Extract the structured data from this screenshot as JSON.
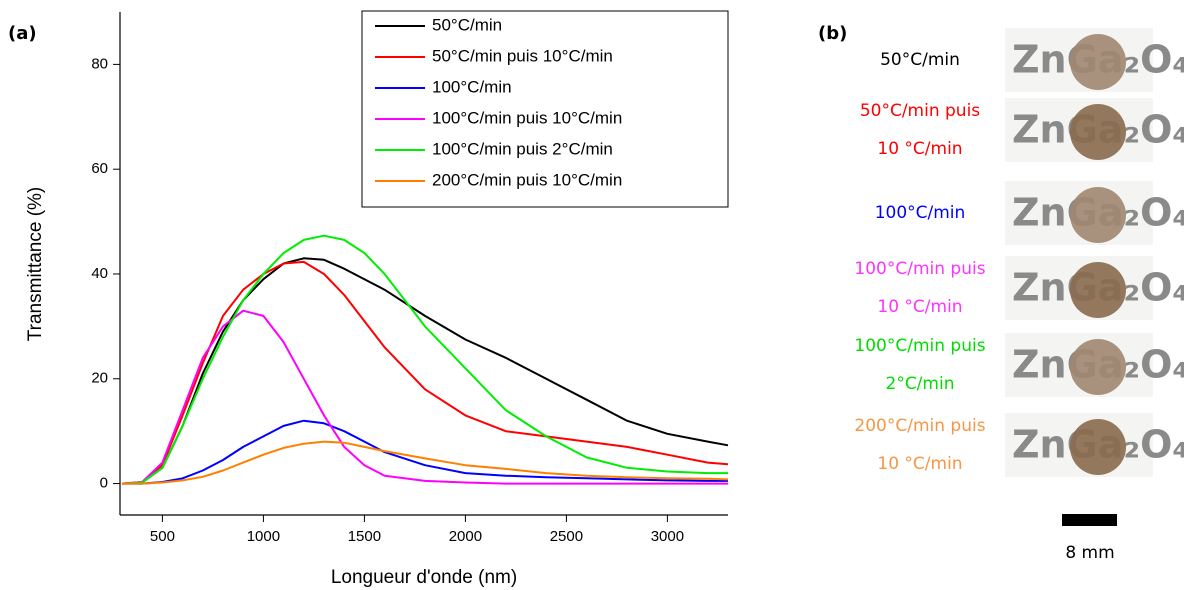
{
  "chart_data": {
    "type": "line",
    "panel_label": "(a)",
    "x_label": "Longueur d'onde (nm)",
    "y_label": "Transmittance (%)",
    "x": [
      300,
      400,
      500,
      600,
      700,
      800,
      900,
      1000,
      1100,
      1200,
      1300,
      1400,
      1500,
      1600,
      1800,
      2000,
      2200,
      2400,
      2600,
      2800,
      3000,
      3200,
      3300
    ],
    "series": [
      {
        "name": "50°C/min",
        "color": "#000000",
        "values": [
          0,
          0.2,
          3,
          11,
          21,
          29,
          35,
          39,
          42,
          43,
          42.7,
          41,
          39,
          37,
          32,
          27.5,
          24,
          20,
          16,
          12,
          9.5,
          8,
          7.3
        ]
      },
      {
        "name": "50°C/min puis 10°C/min",
        "color": "#ff0000",
        "values": [
          0,
          0.3,
          3.5,
          13,
          23,
          32,
          37,
          40,
          42,
          42.3,
          40,
          36,
          31,
          26,
          18,
          13,
          10,
          9,
          8,
          7,
          5.5,
          4,
          3.7
        ]
      },
      {
        "name": "100°C/min",
        "color": "#0000ff",
        "values": [
          0,
          0,
          0.3,
          1,
          2.5,
          4.5,
          7,
          9,
          11,
          12,
          11.5,
          10,
          8,
          6,
          3.5,
          2,
          1.5,
          1.2,
          1,
          0.8,
          0.6,
          0.5,
          0.5
        ]
      },
      {
        "name": "100°C/min puis 10°C/min",
        "color": "#ff00ff",
        "values": [
          0,
          0.3,
          4,
          14,
          24,
          30,
          33,
          32,
          27,
          20,
          13,
          7,
          3.5,
          1.5,
          0.5,
          0.2,
          0,
          0,
          0,
          0,
          0,
          0,
          0
        ]
      },
      {
        "name": "100°C/min puis 2°C/min",
        "color": "#00ee00",
        "values": [
          0,
          0.2,
          3,
          11,
          20,
          28,
          35,
          40,
          44,
          46.5,
          47.3,
          46.5,
          44,
          40,
          30,
          22,
          14,
          9,
          5,
          3,
          2.3,
          2,
          2
        ]
      },
      {
        "name": "200°C/min puis 10°C/min",
        "color": "#ff8000",
        "values": [
          0,
          0,
          0.2,
          0.6,
          1.3,
          2.5,
          4,
          5.5,
          6.8,
          7.6,
          8,
          7.8,
          7,
          6.2,
          4.8,
          3.5,
          2.8,
          2,
          1.5,
          1.2,
          1,
          0.9,
          0.8
        ]
      }
    ],
    "xlim": [
      290,
      3300
    ],
    "ylim": [
      -6,
      90
    ],
    "xticks": [
      500,
      1000,
      1500,
      2000,
      2500,
      3000
    ],
    "yticks": [
      0,
      20,
      40,
      60,
      80
    ],
    "legend": "upper-right"
  },
  "panel_b": {
    "label": "(b)",
    "sample_text": "ZnGa₂O₄",
    "scale_bar": "8 mm",
    "samples": [
      {
        "lines": [
          "50°C/min"
        ],
        "color": "#000000"
      },
      {
        "lines": [
          "50°C/min puis",
          "10 °C/min"
        ],
        "color": "#ff0000"
      },
      {
        "lines": [
          "100°C/min"
        ],
        "color": "#0000ff"
      },
      {
        "lines": [
          "100°C/min puis",
          "10 °C/min"
        ],
        "color": "#ff33ff"
      },
      {
        "lines": [
          "100°C/min puis",
          "2°C/min"
        ],
        "color": "#00dd00"
      },
      {
        "lines": [
          "200°C/min puis",
          "10 °C/min"
        ],
        "color": "#f79646"
      }
    ]
  }
}
